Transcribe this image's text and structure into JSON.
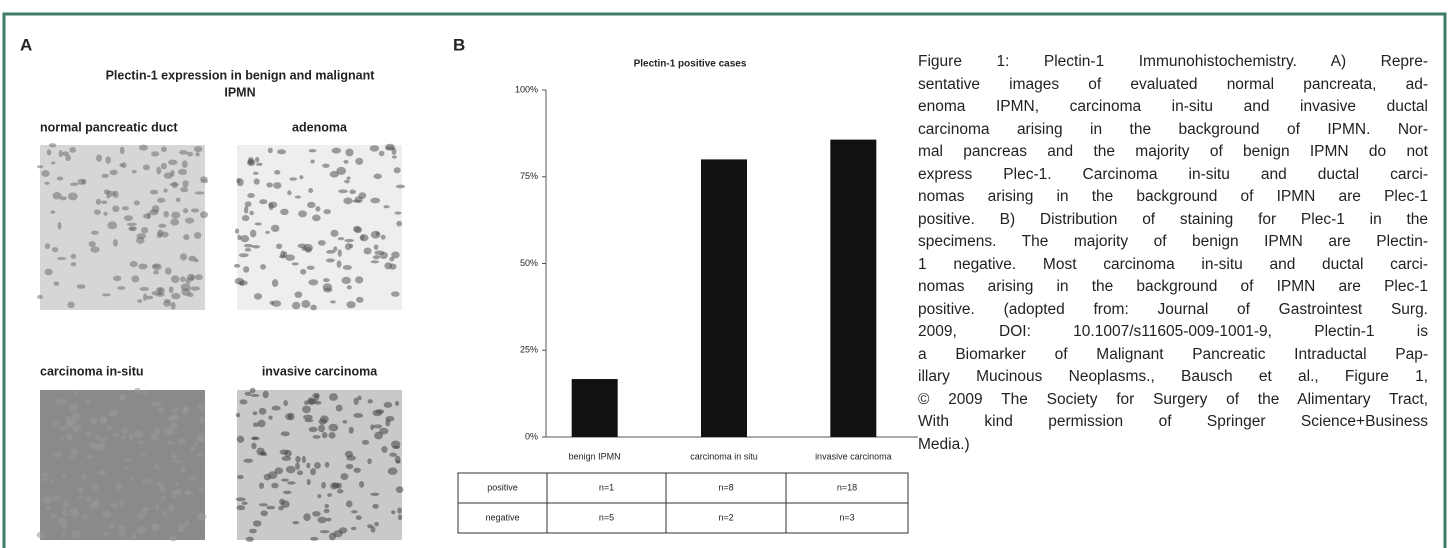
{
  "panel_a": {
    "label": "A",
    "title_lines": [
      "Plectin-1 expression in benign and malignant",
      "IPMN"
    ],
    "images": [
      {
        "label": "normal pancreatic duct"
      },
      {
        "label": "adenoma"
      },
      {
        "label": "carcinoma in-situ"
      },
      {
        "label": "invasive carcinoma"
      }
    ]
  },
  "chart_data": {
    "type": "bar",
    "panel_label": "B",
    "title": "Plectin-1 positive cases",
    "categories": [
      "benign IPMN",
      "carcinoma in situ",
      "invasive carcinoma"
    ],
    "values": [
      16.7,
      80,
      85.7
    ],
    "color": "#111111",
    "ylim": [
      0,
      100
    ],
    "yticks": [
      {
        "value": 0,
        "label": "0%"
      },
      {
        "value": 25,
        "label": "25%"
      },
      {
        "value": 50,
        "label": "50%"
      },
      {
        "value": 75,
        "label": "75%"
      },
      {
        "value": 100,
        "label": "100%"
      }
    ],
    "grid": false
  },
  "table": {
    "rows": [
      [
        "positive",
        "n=1",
        "n=8",
        "n=18"
      ],
      [
        "negative",
        "n=5",
        "n=2",
        "n=3"
      ]
    ]
  },
  "caption": {
    "lines": [
      "Figure 1: Plectin-1 Immunohistochemistry. A) Repre-",
      "sentative images of evaluated normal pancreata, ad-",
      "enoma IPMN, carcinoma in-situ and invasive ductal",
      "carcinoma arising in the background of IPMN. Nor-",
      "mal pancreas and the majority of benign IPMN do not",
      "express Plec-1. Carcinoma in-situ and ductal carci-",
      "nomas arising in the background of IPMN are Plec-1",
      "positive. B) Distribution of staining for Plec-1 in the",
      "specimens. The majority of benign IPMN are Plectin-",
      "1 negative. Most carcinoma in-situ and ductal carci-",
      "nomas arising in the background of IPMN are Plec-1",
      "positive. (adopted from: Journal of Gastrointest Surg.",
      "2009, DOI: 10.1007/s11605-009-1001-9, Plectin-1 is",
      "a Biomarker of Malignant Pancreatic Intraductal Pap-",
      "illary Mucinous Neoplasms., Bausch et al., Figure 1,",
      "© 2009 The Society for Surgery of the Alimentary Tract,",
      "With kind permission of Springer Science+Business",
      "Media.)"
    ]
  }
}
